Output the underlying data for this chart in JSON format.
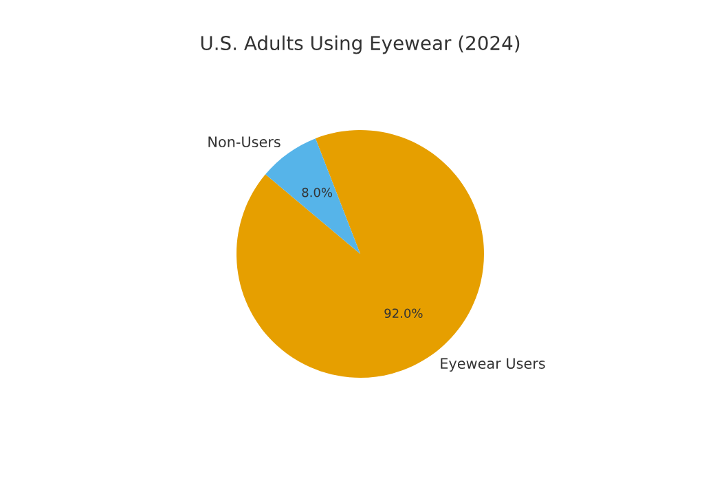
{
  "chart_data": {
    "type": "pie",
    "title": "U.S. Adults Using Eyewear (2024)",
    "categories": [
      "Eyewear Users",
      "Non-Users"
    ],
    "values": [
      92,
      8
    ],
    "colors": [
      "#e69f00",
      "#56b4e9"
    ],
    "value_labels": [
      "92.0%",
      "8.0%"
    ]
  }
}
